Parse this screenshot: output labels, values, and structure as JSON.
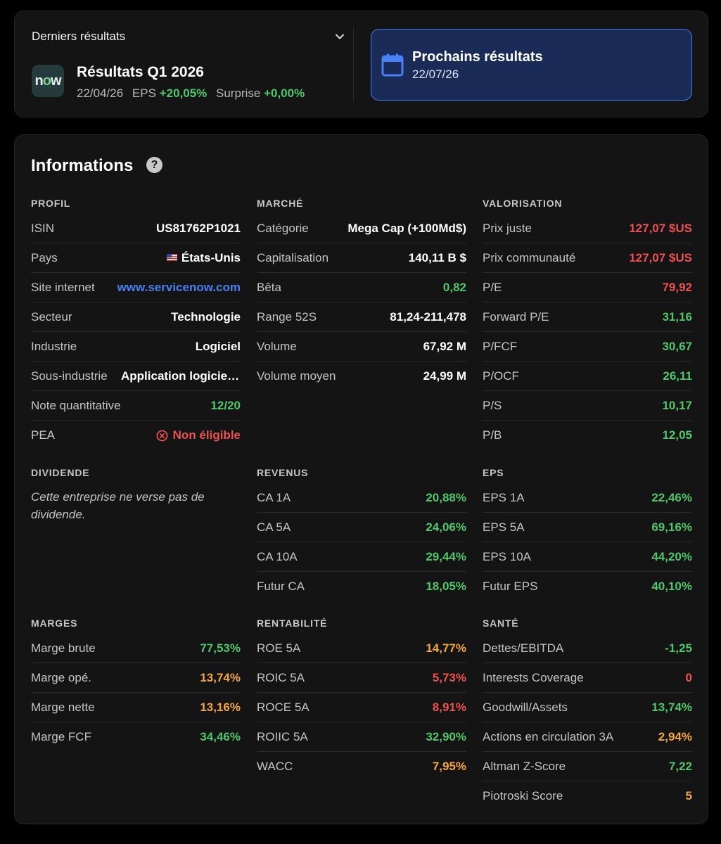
{
  "latest": {
    "label": "Derniers résultats",
    "logo_text_a": "n",
    "logo_text_b": "o",
    "logo_text_c": "w",
    "title": "Résultats Q1 2026",
    "date": "22/04/26",
    "eps_label": "EPS",
    "eps_value": "+20,05%",
    "surprise_label": "Surprise",
    "surprise_value": "+0,00%"
  },
  "next": {
    "title": "Prochains résultats",
    "date": "22/07/26"
  },
  "info": {
    "title": "Informations",
    "help": "?"
  },
  "profil": {
    "head": "PROFIL",
    "rows": [
      {
        "k": "ISIN",
        "v": "US81762P1021"
      },
      {
        "k": "Pays",
        "v": "États-Unis"
      },
      {
        "k": "Site internet",
        "v": "www.servicenow.com"
      },
      {
        "k": "Secteur",
        "v": "Technologie"
      },
      {
        "k": "Industrie",
        "v": "Logiciel"
      },
      {
        "k": "Sous-industrie",
        "v": "Application logicielle"
      },
      {
        "k": "Note quantitative",
        "v": "12/20"
      },
      {
        "k": "PEA",
        "v": "Non éligible"
      }
    ]
  },
  "marche": {
    "head": "MARCHÉ",
    "rows": [
      {
        "k": "Catégorie",
        "v": "Mega Cap (+100Md$)"
      },
      {
        "k": "Capitalisation",
        "v": "140,11 B $"
      },
      {
        "k": "Bêta",
        "v": "0,82"
      },
      {
        "k": "Range 52S",
        "v": "81,24-211,478"
      },
      {
        "k": "Volume",
        "v": "67,92 M"
      },
      {
        "k": "Volume moyen",
        "v": "24,99 M"
      }
    ]
  },
  "valorisation": {
    "head": "VALORISATION",
    "rows": [
      {
        "k": "Prix juste",
        "v": "127,07 $US"
      },
      {
        "k": "Prix communauté",
        "v": "127,07 $US"
      },
      {
        "k": "P/E",
        "v": "79,92"
      },
      {
        "k": "Forward P/E",
        "v": "31,16"
      },
      {
        "k": "P/FCF",
        "v": "30,67"
      },
      {
        "k": "P/OCF",
        "v": "26,11"
      },
      {
        "k": "P/S",
        "v": "10,17"
      },
      {
        "k": "P/B",
        "v": "12,05"
      }
    ]
  },
  "dividende": {
    "head": "DIVIDENDE",
    "text": "Cette entreprise ne verse pas de dividende."
  },
  "revenus": {
    "head": "REVENUS",
    "rows": [
      {
        "k": "CA 1A",
        "v": "20,88%"
      },
      {
        "k": "CA 5A",
        "v": "24,06%"
      },
      {
        "k": "CA 10A",
        "v": "29,44%"
      },
      {
        "k": "Futur CA",
        "v": "18,05%"
      }
    ]
  },
  "eps": {
    "head": "EPS",
    "rows": [
      {
        "k": "EPS 1A",
        "v": "22,46%"
      },
      {
        "k": "EPS 5A",
        "v": "69,16%"
      },
      {
        "k": "EPS 10A",
        "v": "44,20%"
      },
      {
        "k": "Futur EPS",
        "v": "40,10%"
      }
    ]
  },
  "marges": {
    "head": "MARGES",
    "rows": [
      {
        "k": "Marge brute",
        "v": "77,53%"
      },
      {
        "k": "Marge opé.",
        "v": "13,74%"
      },
      {
        "k": "Marge nette",
        "v": "13,16%"
      },
      {
        "k": "Marge FCF",
        "v": "34,46%"
      }
    ]
  },
  "rentabilite": {
    "head": "RENTABILITÉ",
    "rows": [
      {
        "k": "ROE 5A",
        "v": "14,77%"
      },
      {
        "k": "ROIC 5A",
        "v": "5,73%"
      },
      {
        "k": "ROCE 5A",
        "v": "8,91%"
      },
      {
        "k": "ROIIC 5A",
        "v": "32,90%"
      },
      {
        "k": "WACC",
        "v": "7,95%"
      }
    ]
  },
  "sante": {
    "head": "SANTÉ",
    "rows": [
      {
        "k": "Dettes/EBITDA",
        "v": "-1,25"
      },
      {
        "k": "Interests Coverage",
        "v": "0"
      },
      {
        "k": "Goodwill/Assets",
        "v": "13,74%"
      },
      {
        "k": "Actions en circulation 3A",
        "v": "2,94%"
      },
      {
        "k": "Altman Z-Score",
        "v": "7,22"
      },
      {
        "k": "Piotroski Score",
        "v": "5"
      }
    ]
  },
  "colors": {
    "positive": "#4fc76a",
    "negative": "#ee5152",
    "warning": "#f5a543",
    "link": "#4a7ff0",
    "accent": "#4a78ea",
    "accent_bg": "#1b2b57"
  },
  "icons": [
    "chevron-down-icon",
    "calendar-icon",
    "help-icon",
    "us-flag-icon",
    "x-circle-icon"
  ]
}
